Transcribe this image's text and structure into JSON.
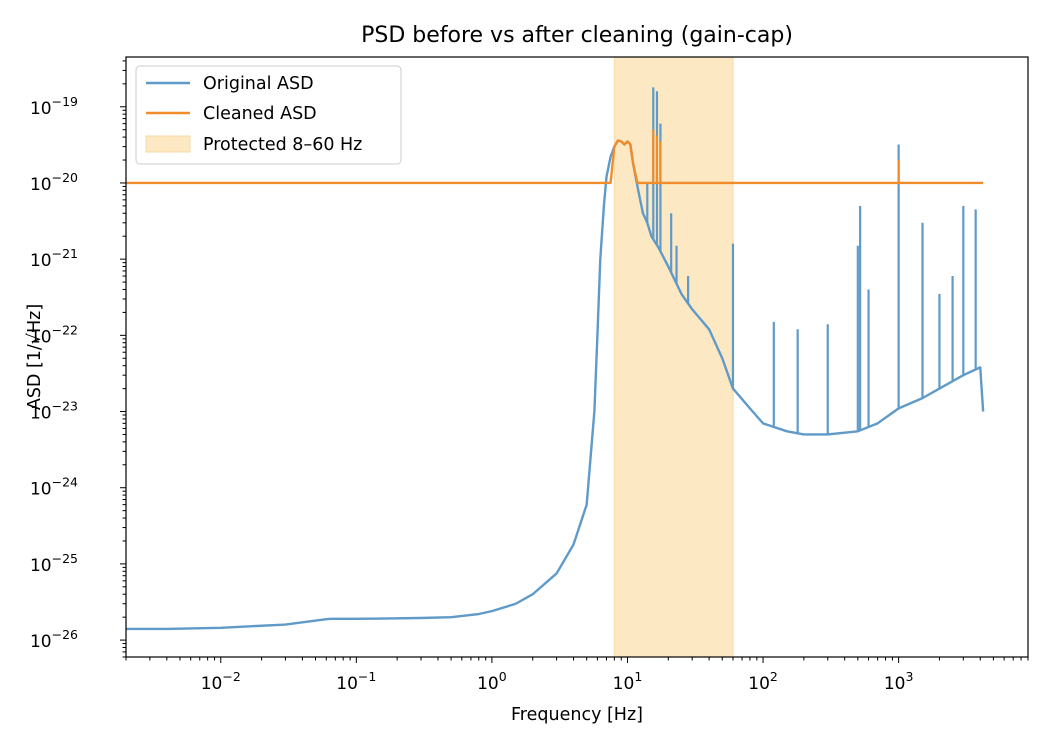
{
  "chart_data": {
    "type": "line",
    "title": "PSD before vs after cleaning (gain-cap)",
    "xlabel": "Frequency [Hz]",
    "ylabel": "ASD [1/√Hz]",
    "x_scale": "log",
    "y_scale": "log",
    "xlim": [
      0.002,
      9000
    ],
    "ylim": [
      6e-27,
      4.5e-19
    ],
    "x_ticks": [
      {
        "value": 0.01,
        "label_base": "10",
        "label_exp": "−2"
      },
      {
        "value": 0.1,
        "label_base": "10",
        "label_exp": "−1"
      },
      {
        "value": 1,
        "label_base": "10",
        "label_exp": "0"
      },
      {
        "value": 10,
        "label_base": "10",
        "label_exp": "1"
      },
      {
        "value": 100,
        "label_base": "10",
        "label_exp": "2"
      },
      {
        "value": 1000,
        "label_base": "10",
        "label_exp": "3"
      }
    ],
    "y_ticks": [
      {
        "value": 1e-26,
        "label_base": "10",
        "label_exp": "−26"
      },
      {
        "value": 1e-25,
        "label_base": "10",
        "label_exp": "−25"
      },
      {
        "value": 1e-24,
        "label_base": "10",
        "label_exp": "−24"
      },
      {
        "value": 1e-23,
        "label_base": "10",
        "label_exp": "−23"
      },
      {
        "value": 1e-22,
        "label_base": "10",
        "label_exp": "−22"
      },
      {
        "value": 1e-21,
        "label_base": "10",
        "label_exp": "−21"
      },
      {
        "value": 1e-20,
        "label_base": "10",
        "label_exp": "−20"
      },
      {
        "value": 1e-19,
        "label_base": "10",
        "label_exp": "−19"
      }
    ],
    "grid": false,
    "legend_position": "top-left",
    "band": {
      "name": "Protected 8–60 Hz",
      "x_range": [
        8,
        60
      ],
      "color": "#fde8c4",
      "edge_color": "#f9d9a8"
    },
    "series": [
      {
        "name": "Original ASD",
        "color": "#5f9ac8",
        "x": [
          0.002,
          0.004,
          0.01,
          0.03,
          0.06,
          0.065,
          0.1,
          0.3,
          0.5,
          0.8,
          1.0,
          1.5,
          2.0,
          3.0,
          4.0,
          5.0,
          5.7,
          6.0,
          6.3,
          6.7,
          7.0,
          7.5,
          8.0,
          8.5,
          9.0,
          9.5,
          10.0,
          10.5,
          11.0,
          12.0,
          13.0,
          14.0,
          15.0,
          17.0,
          20.0,
          25.0,
          30.0,
          40.0,
          50.0,
          60.0,
          80.0,
          100.0,
          150.0,
          200.0,
          300.0,
          500.0,
          700.0,
          1000.0,
          1500.0,
          2000.0,
          3000.0,
          4000.0,
          4200.0
        ],
        "y": [
          1.4e-26,
          1.4e-26,
          1.45e-26,
          1.6e-26,
          1.88e-26,
          1.9e-26,
          1.9e-26,
          1.95e-26,
          2e-26,
          2.2e-26,
          2.4e-26,
          3e-26,
          4e-26,
          7.5e-26,
          1.8e-25,
          6e-25,
          1e-23,
          1e-22,
          1e-21,
          5e-21,
          1.2e-20,
          2.2e-20,
          3e-20,
          3.6e-20,
          3.5e-20,
          3.2e-20,
          3.5e-20,
          3.2e-20,
          1.8e-20,
          8e-21,
          4e-21,
          3e-21,
          2e-21,
          1.4e-21,
          8e-22,
          3.5e-22,
          2.2e-22,
          1.2e-22,
          5e-23,
          2e-23,
          1.1e-23,
          7e-24,
          5.5e-24,
          5e-24,
          5e-24,
          5.5e-24,
          7e-24,
          1.1e-23,
          1.5e-23,
          2e-23,
          3e-23,
          3.8e-23,
          1e-23
        ],
        "spikes": [
          {
            "x": 14,
            "y": 1e-20
          },
          {
            "x": 15.5,
            "y": 1.8e-19
          },
          {
            "x": 16.5,
            "y": 1.6e-19
          },
          {
            "x": 17.5,
            "y": 6e-20
          },
          {
            "x": 21,
            "y": 4e-21
          },
          {
            "x": 23,
            "y": 1.5e-21
          },
          {
            "x": 28,
            "y": 6e-22
          },
          {
            "x": 60,
            "y": 1.6e-21
          },
          {
            "x": 120,
            "y": 1.5e-22
          },
          {
            "x": 180,
            "y": 1.2e-22
          },
          {
            "x": 300,
            "y": 1.4e-22
          },
          {
            "x": 500,
            "y": 1.5e-21
          },
          {
            "x": 520,
            "y": 5e-21
          },
          {
            "x": 600,
            "y": 4e-22
          },
          {
            "x": 1000,
            "y": 3.2e-20
          },
          {
            "x": 1500,
            "y": 3e-21
          },
          {
            "x": 2000,
            "y": 3.5e-22
          },
          {
            "x": 2500,
            "y": 6e-22
          },
          {
            "x": 3000,
            "y": 5e-21
          },
          {
            "x": 3700,
            "y": 4.5e-21
          }
        ]
      },
      {
        "name": "Cleaned ASD",
        "color": "#f18c2a",
        "x": [
          0.002,
          7.5,
          8.0,
          8.5,
          9.0,
          9.5,
          10.0,
          10.5,
          11.0,
          11.8,
          12.0,
          4200.0
        ],
        "y": [
          1e-20,
          1e-20,
          3e-20,
          3.6e-20,
          3.5e-20,
          3.2e-20,
          3.5e-20,
          3.2e-20,
          1.8e-20,
          1.02e-20,
          1e-20,
          1e-20
        ],
        "spikes": [
          {
            "x": 15.5,
            "y": 5e-20
          },
          {
            "x": 16.5,
            "y": 4.2e-20
          },
          {
            "x": 17.5,
            "y": 3.5e-20
          },
          {
            "x": 1000,
            "y": 2e-20
          }
        ]
      }
    ]
  }
}
